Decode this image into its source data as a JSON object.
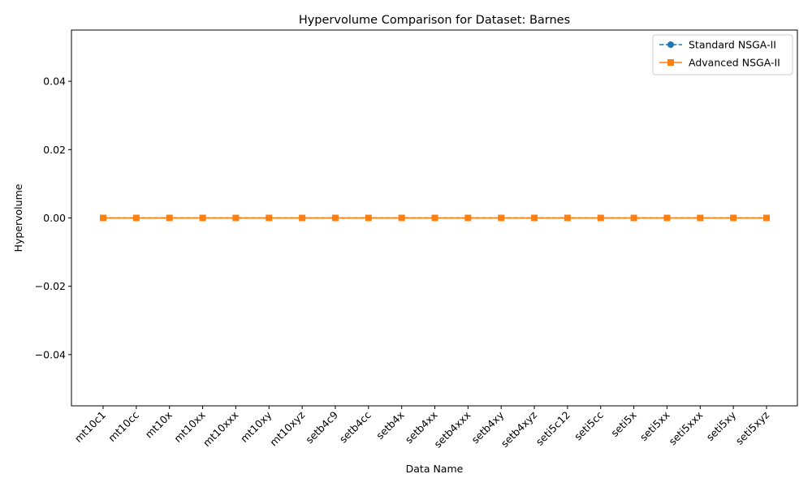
{
  "chart_data": {
    "type": "line",
    "title": "Hypervolume Comparison for Dataset: Barnes",
    "xlabel": "Data Name",
    "ylabel": "Hypervolume",
    "categories": [
      "mt10c1",
      "mt10cc",
      "mt10x",
      "mt10xx",
      "mt10xxx",
      "mt10xy",
      "mt10xyz",
      "setb4c9",
      "setb4cc",
      "setb4x",
      "setb4xx",
      "setb4xxx",
      "setb4xy",
      "setb4xyz",
      "seti5c12",
      "seti5cc",
      "seti5x",
      "seti5xx",
      "seti5xxx",
      "seti5xy",
      "seti5xyz"
    ],
    "ylim": [
      -0.055,
      0.055
    ],
    "yticks": [
      -0.04,
      -0.02,
      0.0,
      0.02,
      0.04
    ],
    "ytick_labels": [
      "−0.04",
      "−0.02",
      "0.00",
      "0.02",
      "0.04"
    ],
    "grid": false,
    "legend_position": "top-right",
    "series": [
      {
        "name": "Standard NSGA-II",
        "color": "#1f77b4",
        "line_style": "dashed",
        "marker": "circle",
        "values": [
          0,
          0,
          0,
          0,
          0,
          0,
          0,
          0,
          0,
          0,
          0,
          0,
          0,
          0,
          0,
          0,
          0,
          0,
          0,
          0,
          0
        ]
      },
      {
        "name": "Advanced NSGA-II",
        "color": "#ff7f0e",
        "line_style": "solid",
        "marker": "square",
        "values": [
          0,
          0,
          0,
          0,
          0,
          0,
          0,
          0,
          0,
          0,
          0,
          0,
          0,
          0,
          0,
          0,
          0,
          0,
          0,
          0,
          0
        ]
      }
    ]
  }
}
